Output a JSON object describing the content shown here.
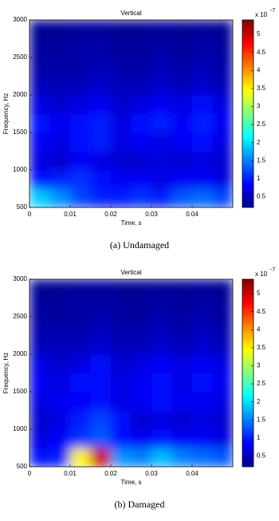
{
  "chart_data": [
    {
      "type": "heatmap",
      "title": "Vertical",
      "xlabel": "Time, s",
      "ylabel": "Frequency, Hz",
      "caption": "(a) Undamaged",
      "xlim": [
        0,
        0.05
      ],
      "ylim": [
        500,
        3000
      ],
      "xticks": [
        0,
        0.01,
        0.02,
        0.03,
        0.04
      ],
      "yticks": [
        500,
        1000,
        1500,
        2000,
        2500,
        3000
      ],
      "z": [
        [
          1.9,
          1.6,
          1.2,
          1.0,
          1.0,
          1.1,
          1.0,
          1.3,
          1.4,
          1.2
        ],
        [
          0.9,
          1.0,
          1.1,
          0.9,
          0.8,
          0.8,
          0.7,
          0.8,
          0.8,
          0.7
        ],
        [
          0.7,
          0.6,
          0.8,
          0.7,
          0.6,
          0.6,
          0.7,
          0.6,
          0.7,
          0.6
        ],
        [
          0.8,
          0.7,
          0.9,
          1.0,
          0.7,
          0.8,
          0.7,
          0.8,
          0.9,
          0.7
        ],
        [
          0.9,
          0.8,
          0.9,
          1.0,
          0.7,
          0.9,
          1.0,
          0.8,
          1.0,
          0.8
        ],
        [
          0.7,
          0.6,
          0.7,
          0.8,
          0.6,
          0.7,
          0.8,
          0.7,
          0.9,
          0.7
        ],
        [
          0.5,
          0.5,
          0.5,
          0.6,
          0.5,
          0.5,
          0.6,
          0.5,
          0.6,
          0.5
        ],
        [
          0.4,
          0.4,
          0.4,
          0.5,
          0.4,
          0.4,
          0.5,
          0.4,
          0.5,
          0.4
        ],
        [
          0.35,
          0.35,
          0.4,
          0.4,
          0.35,
          0.35,
          0.4,
          0.35,
          0.4,
          0.35
        ],
        [
          0.3,
          0.3,
          0.35,
          0.35,
          0.3,
          0.3,
          0.35,
          0.3,
          0.35,
          0.3
        ]
      ],
      "clim": [
        0.2,
        5.4
      ],
      "colorbar_ticks": [
        0.5,
        1,
        1.5,
        2,
        2.5,
        3,
        3.5,
        4,
        4.5,
        5
      ],
      "colorbar_label": "x 10",
      "colorbar_exponent": "-7"
    },
    {
      "type": "heatmap",
      "title": "Vertical",
      "xlabel": "Time, s",
      "ylabel": "Frequency, Hz",
      "caption": "(b) Damaged",
      "xlim": [
        0,
        0.05
      ],
      "ylim": [
        500,
        3000
      ],
      "xticks": [
        0,
        0.01,
        0.02,
        0.03,
        0.04
      ],
      "yticks": [
        500,
        1000,
        1500,
        2000,
        2500,
        3000
      ],
      "z": [
        [
          0.9,
          1.0,
          3.5,
          5.0,
          1.6,
          1.5,
          1.8,
          1.5,
          1.4,
          1.3
        ],
        [
          0.7,
          0.8,
          1.1,
          1.3,
          0.9,
          0.8,
          0.9,
          0.8,
          0.8,
          0.7
        ],
        [
          0.6,
          0.7,
          1.0,
          1.2,
          0.9,
          0.6,
          0.7,
          0.6,
          0.7,
          0.6
        ],
        [
          0.7,
          0.8,
          0.8,
          0.9,
          0.7,
          0.8,
          0.9,
          0.8,
          0.8,
          0.7
        ],
        [
          0.8,
          0.7,
          0.9,
          0.9,
          0.7,
          0.8,
          0.9,
          0.7,
          0.9,
          0.8
        ],
        [
          0.7,
          0.6,
          0.7,
          0.9,
          0.6,
          0.7,
          0.8,
          0.7,
          0.8,
          0.7
        ],
        [
          0.5,
          0.5,
          0.5,
          0.6,
          0.5,
          0.5,
          0.6,
          0.5,
          0.6,
          0.5
        ],
        [
          0.4,
          0.4,
          0.4,
          0.5,
          0.4,
          0.4,
          0.5,
          0.4,
          0.5,
          0.4
        ],
        [
          0.35,
          0.35,
          0.4,
          0.4,
          0.35,
          0.35,
          0.4,
          0.35,
          0.4,
          0.35
        ],
        [
          0.3,
          0.3,
          0.35,
          0.35,
          0.3,
          0.3,
          0.35,
          0.3,
          0.35,
          0.3
        ]
      ],
      "clim": [
        0.2,
        5.4
      ],
      "colorbar_ticks": [
        0.5,
        1,
        1.5,
        2,
        2.5,
        3,
        3.5,
        4,
        4.5,
        5
      ],
      "colorbar_label": "x 10",
      "colorbar_exponent": "-7"
    }
  ]
}
